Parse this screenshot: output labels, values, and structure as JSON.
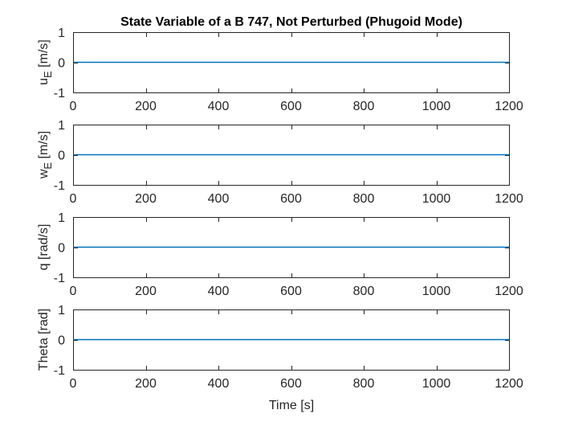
{
  "colors": {
    "series": "#0072bd",
    "axes": "#262626",
    "background": "#ffffff"
  },
  "chart_data": {
    "title": "State Variable of a B 747, Not Perturbed (Phugoid Mode)",
    "xlabel": "Time [s]",
    "grid": false,
    "subplots": [
      {
        "type": "line",
        "ylabel_main": "u",
        "ylabel_sub": "E",
        "ylabel_unit": " [m/s]",
        "xlim": [
          0,
          1200
        ],
        "ylim": [
          -1,
          1
        ],
        "xticks": [
          0,
          200,
          400,
          600,
          800,
          1000,
          1200
        ],
        "yticks": [
          -1,
          0,
          1
        ],
        "series": [
          {
            "x": [
              0,
              1200
            ],
            "y": [
              0,
              0
            ]
          }
        ]
      },
      {
        "type": "line",
        "ylabel_main": "w",
        "ylabel_sub": "E",
        "ylabel_unit": " [m/s]",
        "xlim": [
          0,
          1200
        ],
        "ylim": [
          -1,
          1
        ],
        "xticks": [
          0,
          200,
          400,
          600,
          800,
          1000,
          1200
        ],
        "yticks": [
          -1,
          0,
          1
        ],
        "series": [
          {
            "x": [
              0,
              1200
            ],
            "y": [
              0,
              0
            ]
          }
        ]
      },
      {
        "type": "line",
        "ylabel_main": "q [rad/s]",
        "ylabel_sub": "",
        "ylabel_unit": "",
        "xlim": [
          0,
          1200
        ],
        "ylim": [
          -1,
          1
        ],
        "xticks": [
          0,
          200,
          400,
          600,
          800,
          1000,
          1200
        ],
        "yticks": [
          -1,
          0,
          1
        ],
        "series": [
          {
            "x": [
              0,
              1200
            ],
            "y": [
              0,
              0
            ]
          }
        ]
      },
      {
        "type": "line",
        "ylabel_main": "Theta [rad]",
        "ylabel_sub": "",
        "ylabel_unit": "",
        "xlim": [
          0,
          1200
        ],
        "ylim": [
          -1,
          1
        ],
        "xticks": [
          0,
          200,
          400,
          600,
          800,
          1000,
          1200
        ],
        "yticks": [
          -1,
          0,
          1
        ],
        "series": [
          {
            "x": [
              0,
              1200
            ],
            "y": [
              0,
              0
            ]
          }
        ]
      }
    ]
  }
}
